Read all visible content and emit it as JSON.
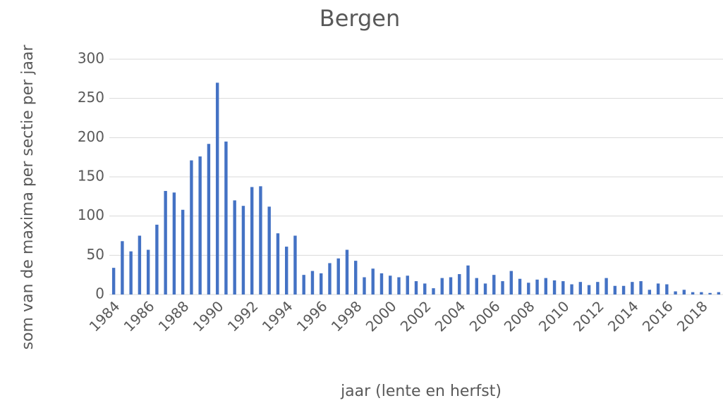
{
  "chart_data": {
    "type": "bar",
    "title": "Bergen",
    "x_label": "jaar (lente en herfst)",
    "y_label": "som van de maxima per sectie per jaar",
    "categories": [
      "1984",
      null,
      null,
      null,
      "1986",
      null,
      null,
      null,
      "1988",
      null,
      null,
      null,
      "1990",
      null,
      null,
      null,
      "1992",
      null,
      null,
      null,
      "1994",
      null,
      null,
      null,
      "1996",
      null,
      null,
      null,
      "1998",
      null,
      null,
      null,
      "2000",
      null,
      null,
      null,
      "2002",
      null,
      null,
      null,
      "2004",
      null,
      null,
      null,
      "2006",
      null,
      null,
      null,
      "2008",
      null,
      null,
      null,
      "2010",
      null,
      null,
      null,
      "2012",
      null,
      null,
      null,
      "2014",
      null,
      null,
      null,
      "2016",
      null,
      null,
      null,
      "2018",
      null,
      null
    ],
    "values": [
      34,
      68,
      55,
      75,
      57,
      89,
      132,
      130,
      108,
      171,
      176,
      192,
      270,
      195,
      120,
      113,
      137,
      138,
      112,
      78,
      61,
      75,
      25,
      30,
      27,
      40,
      46,
      57,
      43,
      22,
      33,
      27,
      24,
      22,
      24,
      17,
      14,
      8,
      21,
      22,
      26,
      37,
      21,
      14,
      25,
      17,
      30,
      20,
      15,
      19,
      21,
      18,
      17,
      13,
      16,
      12,
      16,
      21,
      11,
      11,
      16,
      17,
      6,
      14,
      13,
      4,
      6,
      3,
      3,
      2,
      3
    ],
    "color": "#4472c4",
    "ylim": [
      0,
      300
    ],
    "yticks": [
      0,
      50,
      100,
      150,
      200,
      250,
      300
    ],
    "grid": true
  }
}
